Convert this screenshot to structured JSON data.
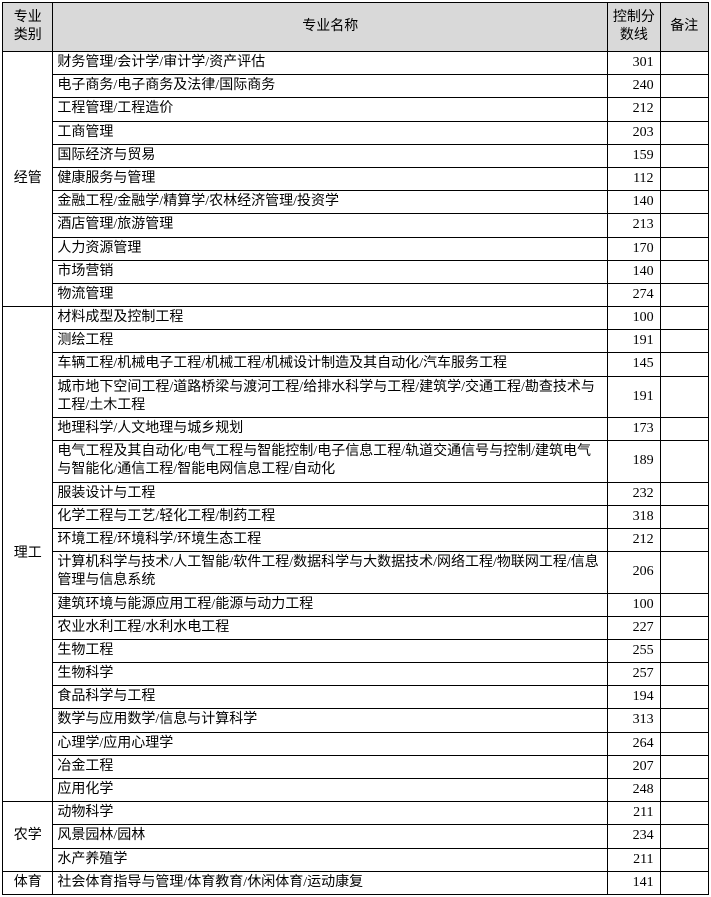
{
  "headers": {
    "category": "专业类别",
    "name": "专业名称",
    "score": "控制分数线",
    "note": "备注"
  },
  "groups": [
    {
      "category": "经管",
      "rows": [
        {
          "name": "财务管理/会计学/审计学/资产评估",
          "score": "301",
          "note": ""
        },
        {
          "name": "电子商务/电子商务及法律/国际商务",
          "score": "240",
          "note": ""
        },
        {
          "name": "工程管理/工程造价",
          "score": "212",
          "note": ""
        },
        {
          "name": "工商管理",
          "score": "203",
          "note": ""
        },
        {
          "name": "国际经济与贸易",
          "score": "159",
          "note": ""
        },
        {
          "name": "健康服务与管理",
          "score": "112",
          "note": ""
        },
        {
          "name": "金融工程/金融学/精算学/农林经济管理/投资学",
          "score": "140",
          "note": ""
        },
        {
          "name": "酒店管理/旅游管理",
          "score": "213",
          "note": ""
        },
        {
          "name": "人力资源管理",
          "score": "170",
          "note": ""
        },
        {
          "name": "市场营销",
          "score": "140",
          "note": ""
        },
        {
          "name": "物流管理",
          "score": "274",
          "note": ""
        }
      ]
    },
    {
      "category": "理工",
      "rows": [
        {
          "name": "材料成型及控制工程",
          "score": "100",
          "note": ""
        },
        {
          "name": "测绘工程",
          "score": "191",
          "note": ""
        },
        {
          "name": "车辆工程/机械电子工程/机械工程/机械设计制造及其自动化/汽车服务工程",
          "score": "145",
          "note": ""
        },
        {
          "name": "城市地下空间工程/道路桥梁与渡河工程/给排水科学与工程/建筑学/交通工程/勘查技术与工程/土木工程",
          "score": "191",
          "note": ""
        },
        {
          "name": "地理科学/人文地理与城乡规划",
          "score": "173",
          "note": ""
        },
        {
          "name": "电气工程及其自动化/电气工程与智能控制/电子信息工程/轨道交通信号与控制/建筑电气与智能化/通信工程/智能电网信息工程/自动化",
          "score": "189",
          "note": ""
        },
        {
          "name": "服装设计与工程",
          "score": "232",
          "note": ""
        },
        {
          "name": "化学工程与工艺/轻化工程/制药工程",
          "score": "318",
          "note": ""
        },
        {
          "name": "环境工程/环境科学/环境生态工程",
          "score": "212",
          "note": ""
        },
        {
          "name": "计算机科学与技术/人工智能/软件工程/数据科学与大数据技术/网络工程/物联网工程/信息管理与信息系统",
          "score": "206",
          "note": ""
        },
        {
          "name": "建筑环境与能源应用工程/能源与动力工程",
          "score": "100",
          "note": ""
        },
        {
          "name": "农业水利工程/水利水电工程",
          "score": "227",
          "note": ""
        },
        {
          "name": "生物工程",
          "score": "255",
          "note": ""
        },
        {
          "name": "生物科学",
          "score": "257",
          "note": ""
        },
        {
          "name": "食品科学与工程",
          "score": "194",
          "note": ""
        },
        {
          "name": "数学与应用数学/信息与计算科学",
          "score": "313",
          "note": ""
        },
        {
          "name": "心理学/应用心理学",
          "score": "264",
          "note": ""
        },
        {
          "name": "冶金工程",
          "score": "207",
          "note": ""
        },
        {
          "name": "应用化学",
          "score": "248",
          "note": ""
        }
      ]
    },
    {
      "category": "农学",
      "rows": [
        {
          "name": "动物科学",
          "score": "211",
          "note": ""
        },
        {
          "name": "风景园林/园林",
          "score": "234",
          "note": ""
        },
        {
          "name": "水产养殖学",
          "score": "211",
          "note": ""
        }
      ]
    },
    {
      "category": "体育",
      "rows": [
        {
          "name": "社会体育指导与管理/体育教育/休闲体育/运动康复",
          "score": "141",
          "note": ""
        }
      ]
    }
  ]
}
